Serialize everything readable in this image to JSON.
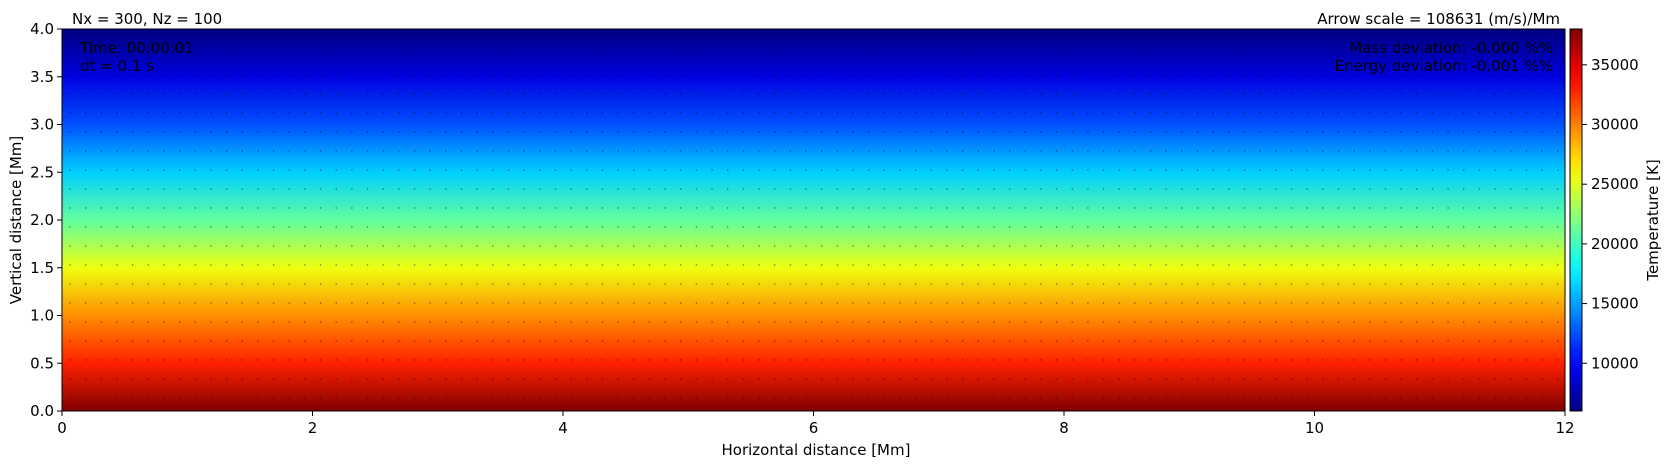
{
  "chart_data": {
    "type": "heatmap",
    "title_left": "Nx = 300, Nz = 100",
    "title_right": "Arrow scale = 108631 (m/s)/Mm",
    "xlabel": "Horizontal distance [Mm]",
    "ylabel": "Vertical distance [Mm]",
    "xlim": [
      0,
      12
    ],
    "ylim": [
      0,
      4
    ],
    "x_ticks": [
      "0",
      "2",
      "4",
      "6",
      "8",
      "10",
      "12"
    ],
    "y_ticks": [
      "0.0",
      "0.5",
      "1.0",
      "1.5",
      "2.0",
      "2.5",
      "3.0",
      "3.5",
      "4.0"
    ],
    "annotations_left": [
      "Time: 00:00:01",
      "dt = 0.1 s"
    ],
    "annotations_right": [
      "Mass deviation: -0.000 %%",
      "Energy deviation: -0.001 %%"
    ],
    "colorbar": {
      "label": "Temperature [K]",
      "range": [
        6000,
        38000
      ],
      "ticks": [
        "10000",
        "15000",
        "20000",
        "25000",
        "30000",
        "35000"
      ],
      "colormap": "jet"
    },
    "temperature_profile": {
      "note_height_units": "Mm",
      "z": [
        0.0,
        0.5,
        1.0,
        1.5,
        2.0,
        2.5,
        3.0,
        3.5,
        4.0
      ],
      "T": [
        38000,
        33000,
        29500,
        25500,
        21000,
        16500,
        12500,
        9000,
        6000
      ]
    },
    "grid": false
  }
}
